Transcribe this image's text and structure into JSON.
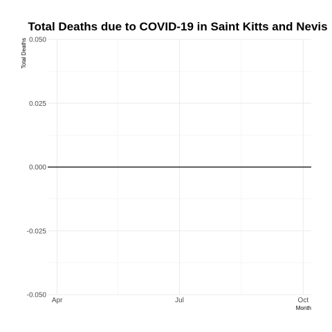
{
  "chart_data": {
    "type": "line",
    "title": "Total Deaths due to COVID-19 in Saint Kitts and Nevis",
    "xlabel": "Month",
    "ylabel": "Total Deaths",
    "x_range": [
      "2020-03-25",
      "2020-10-07"
    ],
    "x_ticks": [
      {
        "date": "2020-04-01",
        "label": "Apr"
      },
      {
        "date": "2020-07-01",
        "label": "Jul"
      },
      {
        "date": "2020-10-01",
        "label": "Oct"
      }
    ],
    "x_minor_ticks": [
      "2020-05-16",
      "2020-08-16"
    ],
    "ylim": [
      -0.05,
      0.05
    ],
    "y_ticks": [
      0.05,
      0.025,
      0.0,
      -0.025,
      -0.05
    ],
    "y_tick_labels": [
      "0.050",
      "0.025",
      "0.000",
      "-0.025",
      "-0.050"
    ],
    "y_minor_ticks": [
      0.0375,
      0.0125,
      -0.0125,
      -0.0375
    ],
    "grid": true,
    "line_color": "#000000",
    "series": [
      {
        "x": [
          "2020-03-25",
          "2020-10-07"
        ],
        "values": [
          0,
          0
        ]
      }
    ]
  }
}
